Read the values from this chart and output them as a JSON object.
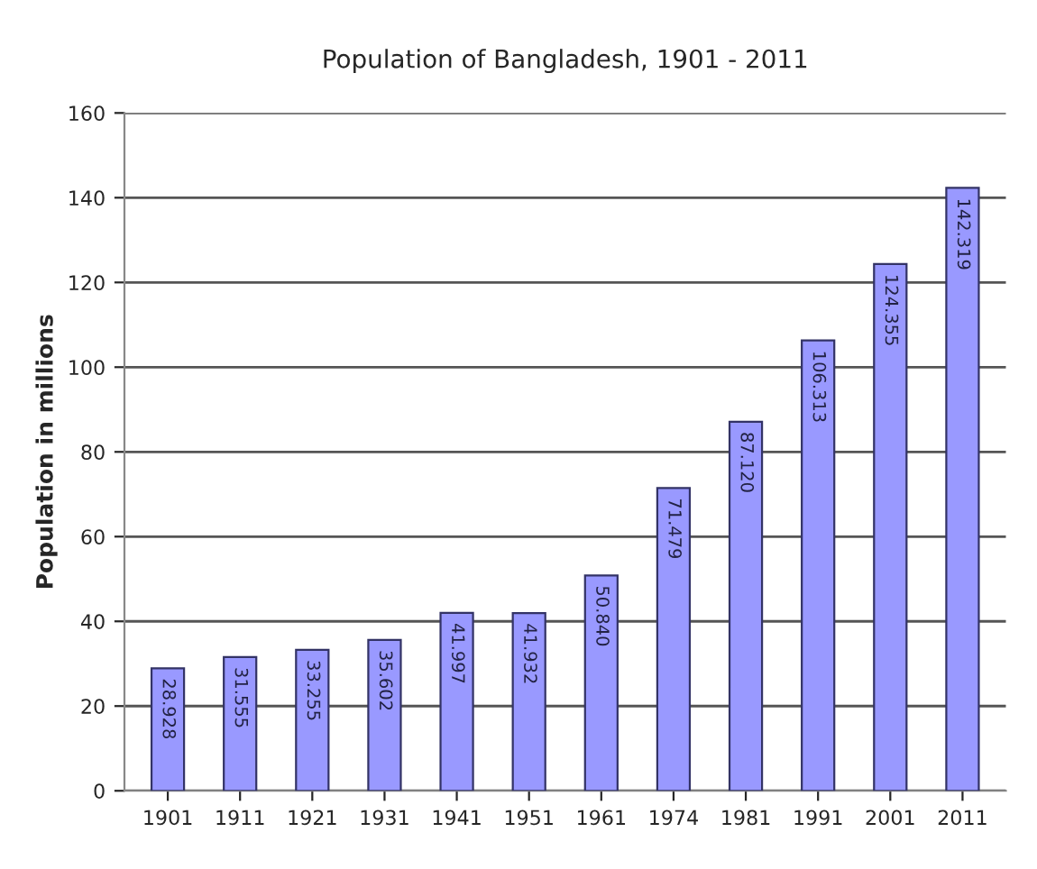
{
  "chart_data": {
    "type": "bar",
    "title": "Population of Bangladesh, 1901 - 2011",
    "ylabel": "Population in millions",
    "categories": [
      "1901",
      "1911",
      "1921",
      "1931",
      "1941",
      "1951",
      "1961",
      "1974",
      "1981",
      "1991",
      "2001",
      "2011"
    ],
    "values": [
      28.928,
      31.555,
      33.255,
      35.602,
      41.997,
      41.932,
      50.84,
      71.479,
      87.12,
      106.313,
      124.355,
      142.319
    ],
    "value_labels": [
      "28.928",
      "31.555",
      "33.255",
      "35.602",
      "41.997",
      "41.932",
      "50.840",
      "71.479",
      "87.120",
      "106.313",
      "124.355",
      "142.319"
    ],
    "color": "#9999ff",
    "ylim": [
      0,
      160
    ],
    "yticks": [
      0,
      20,
      40,
      60,
      80,
      100,
      120,
      140,
      160
    ],
    "grid": "y",
    "legend": false
  }
}
